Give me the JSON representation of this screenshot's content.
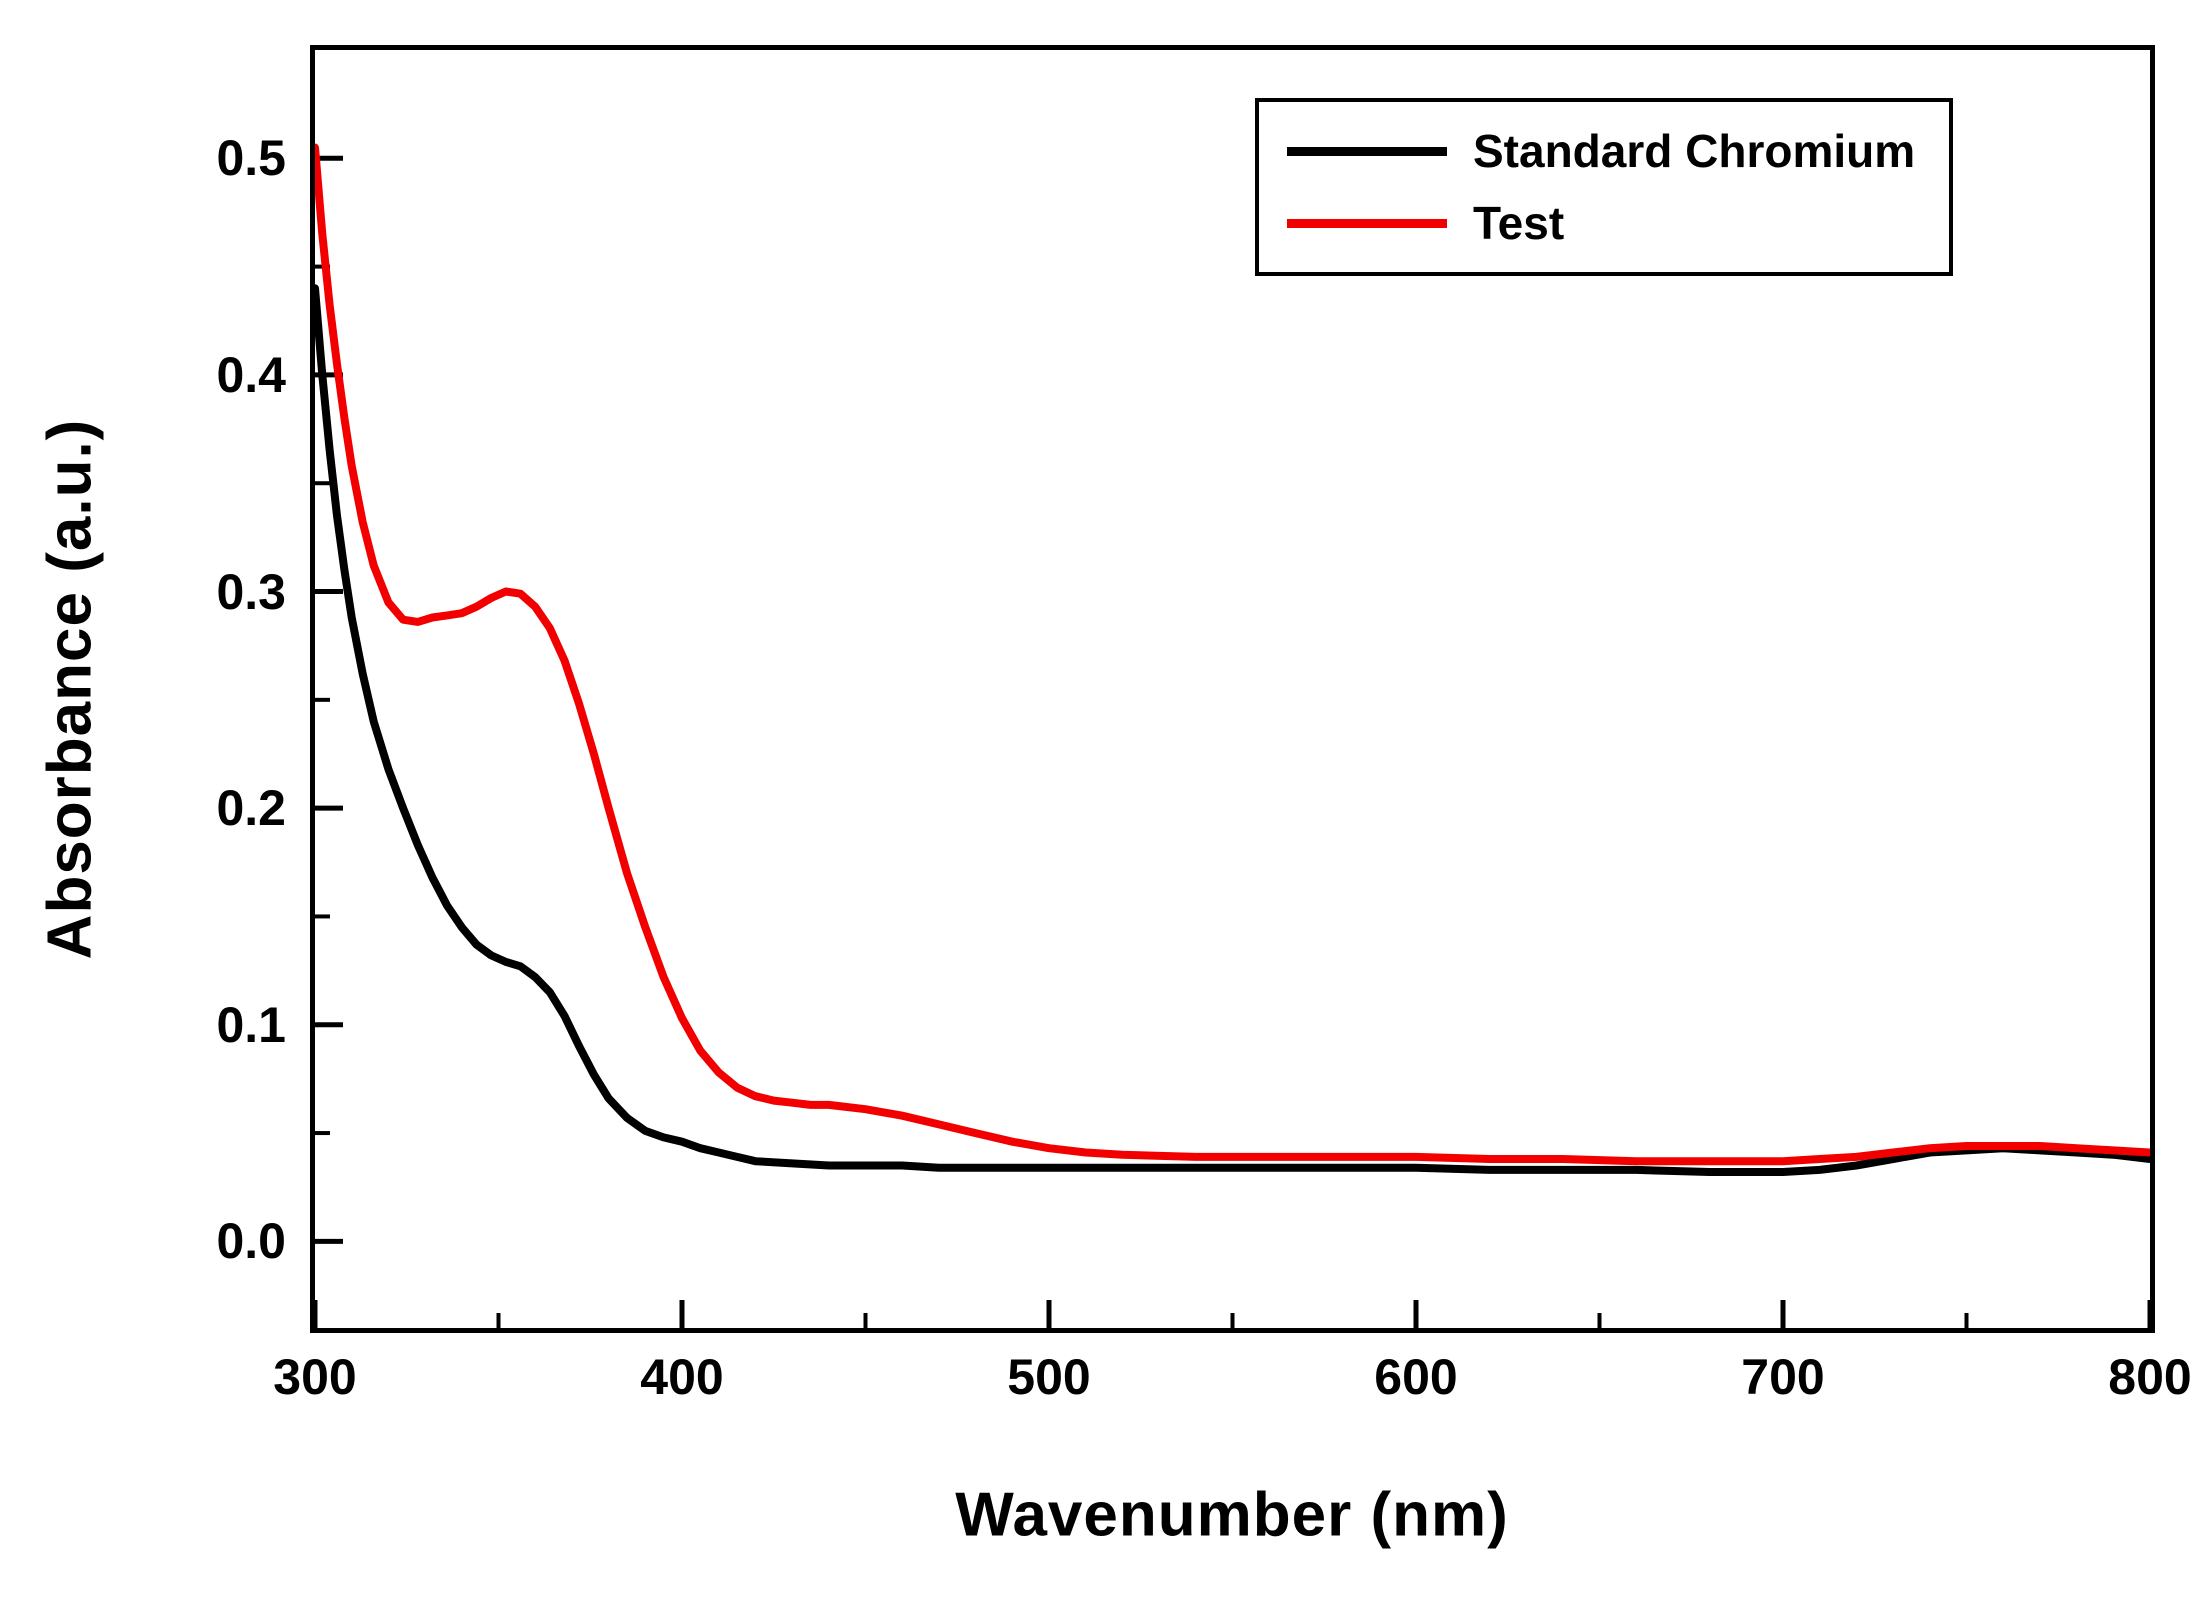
{
  "chart_data": {
    "type": "line",
    "title": "",
    "xlabel": "Wavenumber (nm)",
    "ylabel": "Absorbance (a.u.)",
    "xlim": [
      300,
      800
    ],
    "ylim": [
      -0.04,
      0.55
    ],
    "grid": false,
    "legend_position": "top-right",
    "x_ticks": [
      300,
      400,
      500,
      600,
      700,
      800
    ],
    "x_tick_labels": [
      "300",
      "400",
      "500",
      "600",
      "700",
      "800"
    ],
    "x_minor_ticks": [
      350,
      450,
      550,
      650,
      750
    ],
    "y_ticks": [
      0.0,
      0.1,
      0.2,
      0.3,
      0.4,
      0.5
    ],
    "y_tick_labels": [
      "0.0",
      "0.1",
      "0.2",
      "0.3",
      "0.4",
      "0.5"
    ],
    "y_minor_ticks": [
      0.05,
      0.15,
      0.25,
      0.35,
      0.45
    ],
    "series": [
      {
        "name": "Standard Chromium",
        "color": "#000000",
        "x": [
          300,
          302,
          304,
          306,
          308,
          310,
          313,
          316,
          320,
          324,
          328,
          332,
          336,
          340,
          344,
          348,
          352,
          356,
          360,
          364,
          368,
          372,
          376,
          380,
          385,
          390,
          395,
          400,
          405,
          410,
          415,
          420,
          430,
          440,
          450,
          460,
          470,
          480,
          490,
          500,
          520,
          540,
          560,
          580,
          600,
          620,
          640,
          660,
          680,
          700,
          710,
          720,
          730,
          740,
          750,
          760,
          770,
          780,
          790,
          800
        ],
        "y": [
          0.44,
          0.4,
          0.365,
          0.335,
          0.31,
          0.288,
          0.262,
          0.24,
          0.218,
          0.2,
          0.183,
          0.168,
          0.155,
          0.145,
          0.137,
          0.132,
          0.129,
          0.127,
          0.122,
          0.115,
          0.104,
          0.09,
          0.077,
          0.066,
          0.057,
          0.051,
          0.048,
          0.046,
          0.043,
          0.041,
          0.039,
          0.037,
          0.036,
          0.035,
          0.035,
          0.035,
          0.034,
          0.034,
          0.034,
          0.034,
          0.034,
          0.034,
          0.034,
          0.034,
          0.034,
          0.033,
          0.033,
          0.033,
          0.032,
          0.032,
          0.033,
          0.035,
          0.038,
          0.041,
          0.042,
          0.043,
          0.042,
          0.041,
          0.04,
          0.038
        ]
      },
      {
        "name": "Test",
        "color": "#f20000",
        "x": [
          300,
          302,
          304,
          306,
          308,
          310,
          313,
          316,
          320,
          324,
          328,
          332,
          336,
          340,
          344,
          348,
          352,
          356,
          360,
          364,
          368,
          372,
          376,
          380,
          385,
          390,
          395,
          400,
          405,
          410,
          415,
          420,
          425,
          430,
          435,
          440,
          450,
          460,
          470,
          480,
          490,
          500,
          510,
          520,
          540,
          560,
          580,
          600,
          620,
          640,
          660,
          680,
          700,
          710,
          720,
          730,
          740,
          750,
          760,
          770,
          780,
          790,
          800
        ],
        "y": [
          0.505,
          0.465,
          0.432,
          0.405,
          0.38,
          0.358,
          0.332,
          0.312,
          0.295,
          0.287,
          0.286,
          0.288,
          0.289,
          0.29,
          0.293,
          0.297,
          0.3,
          0.299,
          0.293,
          0.283,
          0.268,
          0.248,
          0.225,
          0.2,
          0.17,
          0.145,
          0.122,
          0.103,
          0.088,
          0.078,
          0.071,
          0.067,
          0.065,
          0.064,
          0.063,
          0.063,
          0.061,
          0.058,
          0.054,
          0.05,
          0.046,
          0.043,
          0.041,
          0.04,
          0.039,
          0.039,
          0.039,
          0.039,
          0.038,
          0.038,
          0.037,
          0.037,
          0.037,
          0.038,
          0.039,
          0.041,
          0.043,
          0.044,
          0.044,
          0.044,
          0.043,
          0.042,
          0.041
        ]
      }
    ]
  }
}
